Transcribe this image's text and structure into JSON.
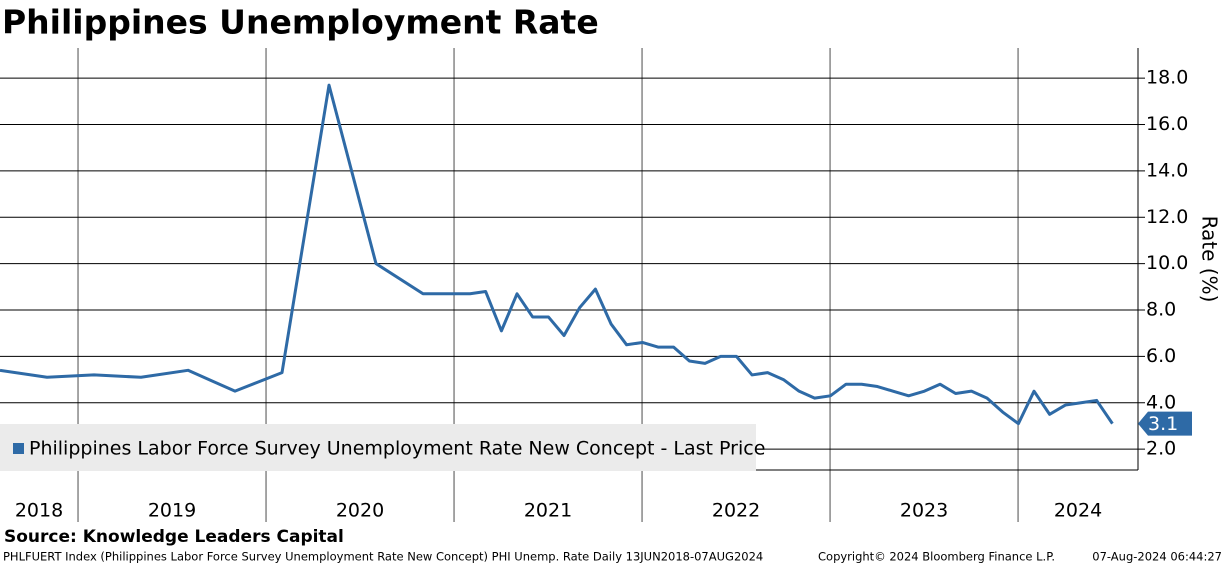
{
  "chart_data": {
    "type": "line",
    "title": "Philippines Unemployment Rate",
    "y_label": "Rate (%)",
    "source": "Source: Knowledge Leaders Capital",
    "footer_left": "PHLFUERT Index (Philippines Labor Force Survey Unemployment Rate New Concept) PHI Unemp. Rate  Daily 13JUN2018-07AUG2024",
    "footer_mid": "Copyright© 2024 Bloomberg Finance L.P.",
    "footer_right": "07-Aug-2024 06:44:27",
    "x": [
      2018.585,
      2018.835,
      2019.085,
      2019.335,
      2019.585,
      2019.835,
      2020.085,
      2020.335,
      2020.585,
      2020.835,
      2021.085,
      2021.168,
      2021.252,
      2021.335,
      2021.418,
      2021.502,
      2021.585,
      2021.668,
      2021.752,
      2021.835,
      2021.918,
      2022.002,
      2022.085,
      2022.168,
      2022.252,
      2022.335,
      2022.418,
      2022.502,
      2022.585,
      2022.668,
      2022.752,
      2022.835,
      2022.918,
      2023.002,
      2023.085,
      2023.168,
      2023.252,
      2023.335,
      2023.418,
      2023.502,
      2023.585,
      2023.668,
      2023.752,
      2023.835,
      2023.918,
      2024.002,
      2024.085,
      2024.168,
      2024.252,
      2024.335,
      2024.418,
      2024.502
    ],
    "series": [
      {
        "name": "Philippines Labor Force Survey Unemployment Rate New Concept - Last Price",
        "color": "#2e6aa6",
        "values": [
          5.4,
          5.1,
          5.2,
          5.1,
          5.4,
          4.5,
          5.3,
          17.7,
          10.0,
          8.7,
          8.7,
          8.8,
          7.1,
          8.7,
          7.7,
          7.7,
          6.9,
          8.1,
          8.9,
          7.4,
          6.5,
          6.6,
          6.4,
          6.4,
          5.8,
          5.7,
          6.0,
          6.0,
          5.2,
          5.3,
          5.0,
          4.5,
          4.2,
          4.3,
          4.8,
          4.8,
          4.7,
          4.5,
          4.3,
          4.5,
          4.8,
          4.4,
          4.5,
          4.2,
          3.6,
          3.1,
          4.5,
          3.5,
          3.9,
          4.0,
          4.1,
          3.1
        ]
      }
    ],
    "last_price": 3.1,
    "xlim": [
      2018.585,
      2024.638
    ],
    "xticks": [
      2019,
      2020,
      2021,
      2022,
      2023,
      2024
    ],
    "year_labels": [
      2018,
      2019,
      2020,
      2021,
      2022,
      2023,
      2024
    ],
    "ylim": [
      1.1,
      19.3
    ],
    "yticks": [
      {
        "value": 2,
        "label": "2.0"
      },
      {
        "value": 4,
        "label": "4.0"
      },
      {
        "value": 6,
        "label": "6.0"
      },
      {
        "value": 8,
        "label": "8.0"
      },
      {
        "value": 10,
        "label": "10.0"
      },
      {
        "value": 12,
        "label": "12.0"
      },
      {
        "value": 14,
        "label": "14.0"
      },
      {
        "value": 16,
        "label": "16.0"
      },
      {
        "value": 18,
        "label": "18.0"
      }
    ],
    "grid": true
  }
}
